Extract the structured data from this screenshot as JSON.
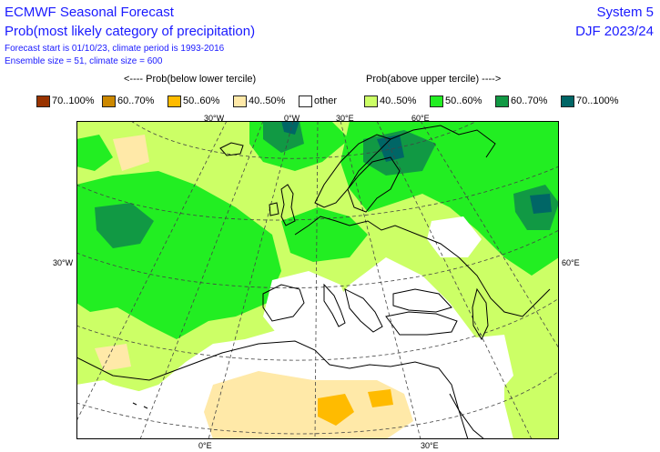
{
  "header": {
    "title": "ECMWF Seasonal Forecast",
    "subtitle": "Prob(most likely category of precipitation)",
    "line3": "Forecast start is 01/10/23, climate period is 1993-2016",
    "line4": "Ensemble size = 51, climate size = 600",
    "system": "System 5",
    "season": "DJF 2023/24"
  },
  "legend": {
    "below_heading": "<---- Prob(below lower tercile)",
    "above_heading": "Prob(above upper tercile) ---->",
    "items": [
      {
        "label": "70..100%",
        "color": "#993300"
      },
      {
        "label": "60..70%",
        "color": "#cc8800"
      },
      {
        "label": "50..60%",
        "color": "#ffbb00"
      },
      {
        "label": "40..50%",
        "color": "#ffe9a8"
      },
      {
        "label": "other",
        "color": "#ffffff"
      },
      {
        "label": "40..50%",
        "color": "#ccff66"
      },
      {
        "label": "50..60%",
        "color": "#22ee22"
      },
      {
        "label": "60..70%",
        "color": "#119944"
      },
      {
        "label": "70..100%",
        "color": "#006666"
      }
    ]
  },
  "coords": {
    "top": [
      "30°W",
      "0°W",
      "30°E",
      "60°E"
    ],
    "left": "30°W",
    "right": "60°E",
    "bottom": [
      "0°E",
      "30°E"
    ]
  }
}
